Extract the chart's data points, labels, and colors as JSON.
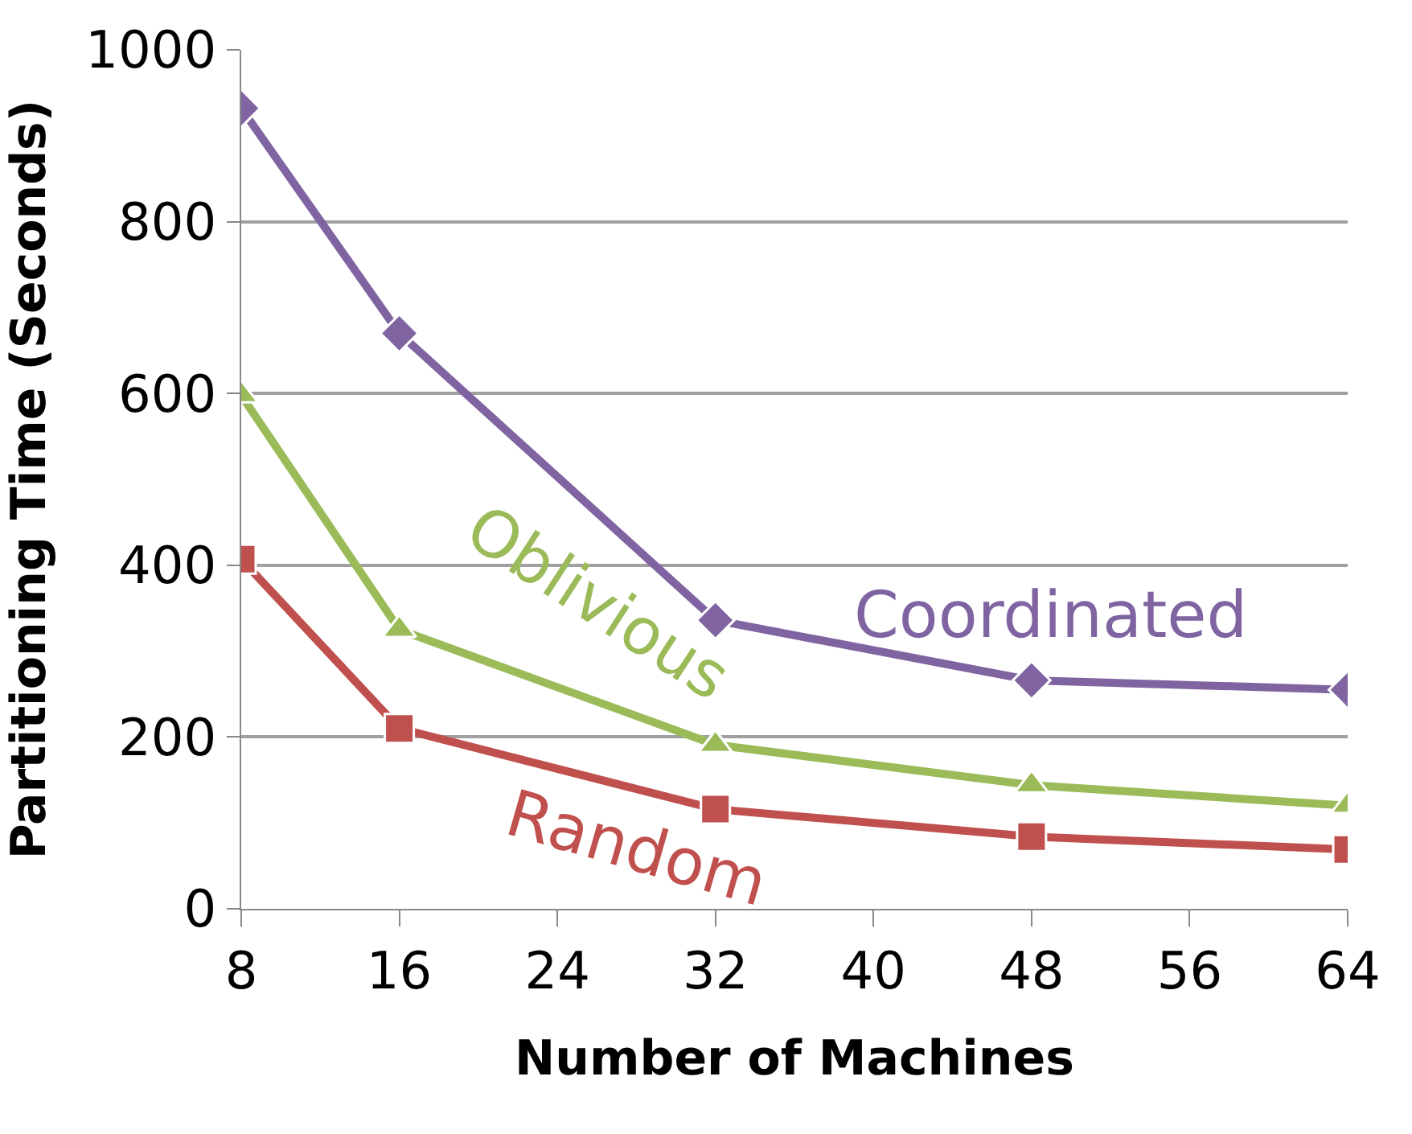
{
  "chart_data": {
    "type": "line",
    "xlabel": "Number of Machines",
    "ylabel": "Partitioning Time (Seconds)",
    "x": [
      8,
      16,
      32,
      48,
      64
    ],
    "series": [
      {
        "name": "Coordinated",
        "color": "#8064a2",
        "marker": "diamond",
        "values": [
          932,
          670,
          336,
          266,
          255
        ]
      },
      {
        "name": "Oblivious",
        "color": "#9bbb59",
        "marker": "triangle",
        "values": [
          598,
          325,
          191,
          144,
          120
        ]
      },
      {
        "name": "Random",
        "color": "#c0504d",
        "marker": "square",
        "values": [
          407,
          210,
          116,
          84,
          69
        ]
      }
    ],
    "xlim": [
      8,
      64
    ],
    "xticks": [
      8,
      16,
      24,
      32,
      40,
      48,
      56,
      64
    ],
    "ylim": [
      0,
      1000
    ],
    "yticks": [
      0,
      200,
      400,
      600,
      800,
      1000
    ],
    "grid": "y",
    "legend": false,
    "line_style": "solid"
  }
}
